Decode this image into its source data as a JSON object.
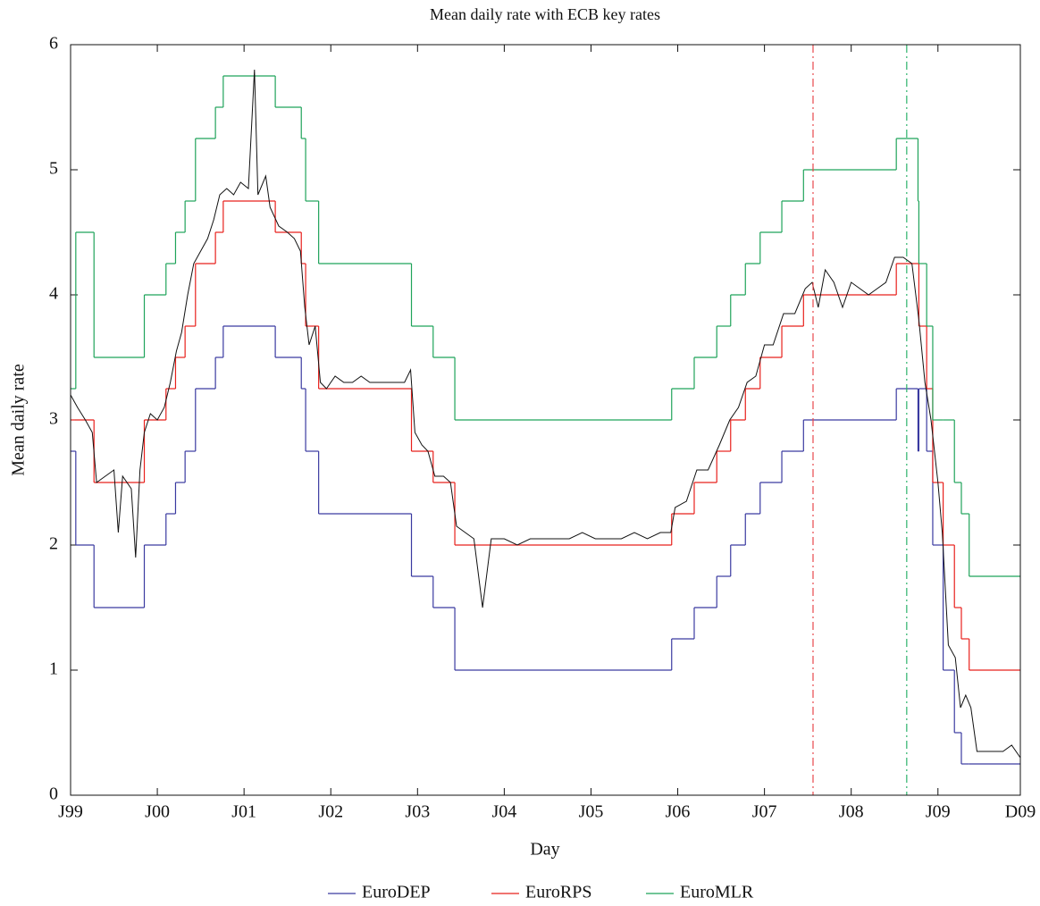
{
  "chart_data": {
    "type": "line",
    "title": "Mean daily rate with ECB key rates",
    "xlabel": "Day",
    "ylabel": "Mean daily rate",
    "xlim": [
      1999.0,
      2009.95
    ],
    "ylim": [
      0,
      6
    ],
    "xticks": [
      {
        "value": 1999.0,
        "label": "J99"
      },
      {
        "value": 2000.0,
        "label": "J00"
      },
      {
        "value": 2001.0,
        "label": "J01"
      },
      {
        "value": 2002.0,
        "label": "J02"
      },
      {
        "value": 2003.0,
        "label": "J03"
      },
      {
        "value": 2004.0,
        "label": "J04"
      },
      {
        "value": 2005.0,
        "label": "J05"
      },
      {
        "value": 2006.0,
        "label": "J06"
      },
      {
        "value": 2007.0,
        "label": "J07"
      },
      {
        "value": 2008.0,
        "label": "J08"
      },
      {
        "value": 2009.0,
        "label": "J09"
      },
      {
        "value": 2009.95,
        "label": "D09"
      }
    ],
    "yticks": [
      0,
      1,
      2,
      3,
      4,
      5,
      6
    ],
    "legend": "bottom",
    "x": [
      1999.0,
      1999.06,
      1999.27,
      1999.85,
      2000.1,
      2000.21,
      2000.32,
      2000.44,
      2000.67,
      2000.76,
      2001.36,
      2001.66,
      2001.71,
      2001.86,
      2002.93,
      2003.18,
      2003.43,
      2005.93,
      2006.19,
      2006.45,
      2006.61,
      2006.78,
      2006.95,
      2007.2,
      2007.45,
      2008.52,
      2008.77,
      2008.78,
      2008.87,
      2008.94,
      2009.06,
      2009.19,
      2009.27,
      2009.36
    ],
    "series": [
      {
        "color": "#111111",
        "drawstyle": "line",
        "x": [
          1999.0,
          1999.08,
          1999.17,
          1999.25,
          1999.3,
          1999.4,
          1999.5,
          1999.55,
          1999.6,
          1999.7,
          1999.75,
          1999.8,
          1999.85,
          1999.92,
          2000.0,
          2000.08,
          2000.15,
          2000.22,
          2000.28,
          2000.35,
          2000.42,
          2000.5,
          2000.58,
          2000.65,
          2000.72,
          2000.8,
          2000.88,
          2000.96,
          2001.05,
          2001.12,
          2001.16,
          2001.25,
          2001.3,
          2001.4,
          2001.5,
          2001.58,
          2001.65,
          2001.7,
          2001.75,
          2001.82,
          2001.88,
          2001.95,
          2002.05,
          2002.15,
          2002.25,
          2002.35,
          2002.45,
          2002.55,
          2002.65,
          2002.75,
          2002.85,
          2002.92,
          2002.97,
          2003.05,
          2003.12,
          2003.2,
          2003.3,
          2003.38,
          2003.45,
          2003.55,
          2003.65,
          2003.75,
          2003.85,
          2004.0,
          2004.15,
          2004.3,
          2004.45,
          2004.6,
          2004.75,
          2004.9,
          2005.05,
          2005.2,
          2005.35,
          2005.5,
          2005.65,
          2005.8,
          2005.92,
          2005.97,
          2006.1,
          2006.22,
          2006.35,
          2006.48,
          2006.6,
          2006.7,
          2006.8,
          2006.9,
          2007.0,
          2007.1,
          2007.22,
          2007.35,
          2007.47,
          2007.55,
          2007.62,
          2007.7,
          2007.8,
          2007.9,
          2008.0,
          2008.1,
          2008.2,
          2008.3,
          2008.4,
          2008.5,
          2008.6,
          2008.7,
          2008.78,
          2008.85,
          2008.92,
          2009.0,
          2009.05,
          2009.12,
          2009.2,
          2009.26,
          2009.32,
          2009.38,
          2009.45,
          2009.55,
          2009.65,
          2009.75,
          2009.85,
          2009.95
        ],
        "values": [
          3.2,
          3.1,
          3.0,
          2.9,
          2.5,
          2.55,
          2.6,
          2.1,
          2.55,
          2.45,
          1.9,
          2.6,
          2.9,
          3.05,
          3.0,
          3.1,
          3.3,
          3.55,
          3.7,
          4.0,
          4.25,
          4.35,
          4.45,
          4.6,
          4.8,
          4.85,
          4.8,
          4.9,
          4.85,
          5.8,
          4.8,
          4.95,
          4.7,
          4.55,
          4.5,
          4.45,
          4.35,
          3.9,
          3.6,
          3.75,
          3.3,
          3.25,
          3.35,
          3.3,
          3.3,
          3.35,
          3.3,
          3.3,
          3.3,
          3.3,
          3.3,
          3.4,
          2.9,
          2.8,
          2.75,
          2.55,
          2.55,
          2.5,
          2.15,
          2.1,
          2.05,
          1.5,
          2.05,
          2.05,
          2.0,
          2.05,
          2.05,
          2.05,
          2.05,
          2.1,
          2.05,
          2.05,
          2.05,
          2.1,
          2.05,
          2.1,
          2.1,
          2.3,
          2.35,
          2.6,
          2.6,
          2.8,
          3.0,
          3.1,
          3.3,
          3.35,
          3.6,
          3.6,
          3.85,
          3.85,
          4.05,
          4.1,
          3.9,
          4.2,
          4.1,
          3.9,
          4.1,
          4.05,
          4.0,
          4.05,
          4.1,
          4.3,
          4.3,
          4.25,
          3.8,
          3.3,
          3.0,
          2.5,
          2.1,
          1.2,
          1.1,
          0.7,
          0.8,
          0.7,
          0.35,
          0.35,
          0.35,
          0.35,
          0.4,
          0.3
        ]
      },
      {
        "name": "EuroDEP",
        "color": "#3a3aa0",
        "drawstyle": "steps-post",
        "values": [
          2.75,
          2.0,
          1.5,
          2.0,
          2.25,
          2.5,
          2.75,
          3.25,
          3.5,
          3.75,
          3.5,
          3.25,
          2.75,
          2.25,
          1.75,
          1.5,
          1.0,
          1.25,
          1.5,
          1.75,
          2.0,
          2.25,
          2.5,
          2.75,
          3.0,
          3.25,
          2.75,
          3.25,
          2.75,
          2.0,
          1.0,
          0.5,
          0.25,
          0.25
        ]
      },
      {
        "name": "EuroRPS",
        "color": "#e8201c",
        "drawstyle": "steps-post",
        "values": [
          3.0,
          3.0,
          2.5,
          3.0,
          3.25,
          3.5,
          3.75,
          4.25,
          4.5,
          4.75,
          4.5,
          4.25,
          3.75,
          3.25,
          2.75,
          2.5,
          2.0,
          2.25,
          2.5,
          2.75,
          3.0,
          3.25,
          3.5,
          3.75,
          4.0,
          4.25,
          4.25,
          3.75,
          3.25,
          2.5,
          2.0,
          1.5,
          1.25,
          1.0
        ]
      },
      {
        "name": "EuroMLR",
        "color": "#1fa35a",
        "drawstyle": "steps-post",
        "values": [
          3.25,
          4.5,
          3.5,
          4.0,
          4.25,
          4.5,
          4.75,
          5.25,
          5.5,
          5.75,
          5.5,
          5.25,
          4.75,
          4.25,
          3.75,
          3.5,
          3.0,
          3.25,
          3.5,
          3.75,
          4.0,
          4.25,
          4.5,
          4.75,
          5.0,
          5.25,
          4.75,
          4.25,
          3.75,
          3.0,
          3.0,
          2.5,
          2.25,
          1.75
        ]
      }
    ],
    "vlines": [
      {
        "x": 2007.56,
        "color": "#e8474b",
        "style": "dashdot"
      },
      {
        "x": 2008.64,
        "color": "#2db36b",
        "style": "dashdot"
      }
    ]
  }
}
